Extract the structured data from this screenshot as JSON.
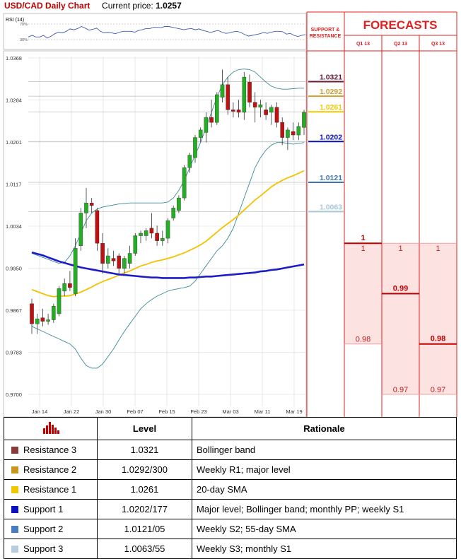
{
  "header": {
    "pair_label": "USD/CAD Daily Chart",
    "price_label": "Current price:",
    "price_value": "1.0257"
  },
  "rsi": {
    "label": "RSI (14)",
    "upper_tick": "70%",
    "lower_tick": "30%",
    "values": [
      46,
      50,
      46,
      46,
      50,
      43,
      48,
      54,
      58,
      56,
      60,
      66,
      64,
      67,
      72,
      68,
      63,
      65,
      68,
      60,
      56,
      57,
      56,
      54,
      58,
      60,
      60,
      60,
      58,
      62,
      64,
      67,
      67,
      70,
      70,
      69,
      72,
      72,
      70,
      68,
      66,
      64,
      66,
      67,
      64,
      66,
      62,
      60,
      57,
      60,
      62,
      58,
      55,
      56,
      59,
      60,
      57,
      52,
      48,
      50,
      52,
      54,
      57,
      55,
      58,
      60,
      60,
      59,
      53,
      55,
      50,
      47,
      50,
      52
    ]
  },
  "chart_data": {
    "type": "candlestick",
    "ylim": [
      0.97,
      1.0368
    ],
    "y_ticks": [
      "1.0368",
      "1.0284",
      "1.0201",
      "1.0117",
      "1.0034",
      "0.9950",
      "0.9867",
      "0.9783",
      "0.9700"
    ],
    "x_ticks": [
      "Jan 14",
      "Jan 22",
      "Jan 30",
      "Feb 07",
      "Feb 15",
      "Feb 23",
      "Mar 03",
      "Mar 11",
      "Mar 19"
    ],
    "candles": [
      {
        "o": 0.988,
        "h": 0.989,
        "l": 0.982,
        "c": 0.984
      },
      {
        "o": 0.984,
        "h": 0.986,
        "l": 0.982,
        "c": 0.985
      },
      {
        "o": 0.9852,
        "h": 0.987,
        "l": 0.9835,
        "c": 0.9845
      },
      {
        "o": 0.9845,
        "h": 0.986,
        "l": 0.9838,
        "c": 0.9848
      },
      {
        "o": 0.9848,
        "h": 0.988,
        "l": 0.9842,
        "c": 0.9875
      },
      {
        "o": 0.986,
        "h": 0.9915,
        "l": 0.9855,
        "c": 0.991
      },
      {
        "o": 0.9905,
        "h": 0.993,
        "l": 0.9895,
        "c": 0.992
      },
      {
        "o": 0.992,
        "h": 0.9945,
        "l": 0.9905,
        "c": 0.9912
      },
      {
        "o": 0.99,
        "h": 1.001,
        "l": 0.9895,
        "c": 0.999
      },
      {
        "o": 0.9995,
        "h": 1.007,
        "l": 0.9985,
        "c": 1.006
      },
      {
        "o": 1.006,
        "h": 1.011,
        "l": 1.003,
        "c": 1.008
      },
      {
        "o": 1.008,
        "h": 1.009,
        "l": 1.006,
        "c": 1.0075
      },
      {
        "o": 1.0065,
        "h": 1.007,
        "l": 0.9985,
        "c": 1.0
      },
      {
        "o": 1.0,
        "h": 1.002,
        "l": 0.994,
        "c": 0.996
      },
      {
        "o": 0.996,
        "h": 0.999,
        "l": 0.995,
        "c": 0.9975
      },
      {
        "o": 0.997,
        "h": 0.9985,
        "l": 0.9955,
        "c": 0.9965
      },
      {
        "o": 0.9975,
        "h": 0.998,
        "l": 0.994,
        "c": 0.995
      },
      {
        "o": 0.995,
        "h": 0.9975,
        "l": 0.994,
        "c": 0.997
      },
      {
        "o": 0.996,
        "h": 0.9995,
        "l": 0.995,
        "c": 0.998
      },
      {
        "o": 0.998,
        "h": 1.002,
        "l": 0.9975,
        "c": 1.0015
      },
      {
        "o": 1.0015,
        "h": 1.0025,
        "l": 1.0,
        "c": 1.002
      },
      {
        "o": 1.0015,
        "h": 1.003,
        "l": 1.0005,
        "c": 1.0025
      },
      {
        "o": 1.003,
        "h": 1.006,
        "l": 1.001,
        "c": 1.002
      },
      {
        "o": 1.002,
        "h": 1.0035,
        "l": 0.9995,
        "c": 1.0005
      },
      {
        "o": 1.0005,
        "h": 1.0025,
        "l": 0.9995,
        "c": 1.001
      },
      {
        "o": 1.001,
        "h": 1.005,
        "l": 1.0,
        "c": 1.0045
      },
      {
        "o": 1.005,
        "h": 1.0075,
        "l": 1.0045,
        "c": 1.007
      },
      {
        "o": 1.0065,
        "h": 1.0095,
        "l": 1.006,
        "c": 1.009
      },
      {
        "o": 1.009,
        "h": 1.0155,
        "l": 1.0085,
        "c": 1.015
      },
      {
        "o": 1.015,
        "h": 1.018,
        "l": 1.014,
        "c": 1.0175
      },
      {
        "o": 1.017,
        "h": 1.0215,
        "l": 1.016,
        "c": 1.021
      },
      {
        "o": 1.021,
        "h": 1.023,
        "l": 1.02,
        "c": 1.0225
      },
      {
        "o": 1.022,
        "h": 1.026,
        "l": 1.02,
        "c": 1.025
      },
      {
        "o": 1.025,
        "h": 1.0285,
        "l": 1.023,
        "c": 1.024
      },
      {
        "o": 1.024,
        "h": 1.03,
        "l": 1.0235,
        "c": 1.0295
      },
      {
        "o": 1.029,
        "h": 1.0345,
        "l": 1.028,
        "c": 1.0315
      },
      {
        "o": 1.0315,
        "h": 1.033,
        "l": 1.0255,
        "c": 1.0265
      },
      {
        "o": 1.0265,
        "h": 1.028,
        "l": 1.025,
        "c": 1.0262
      },
      {
        "o": 1.0265,
        "h": 1.0285,
        "l": 1.025,
        "c": 1.026
      },
      {
        "o": 1.026,
        "h": 1.034,
        "l": 1.0245,
        "c": 1.033
      },
      {
        "o": 1.032,
        "h": 1.0335,
        "l": 1.027,
        "c": 1.028
      },
      {
        "o": 1.028,
        "h": 1.03,
        "l": 1.024,
        "c": 1.027
      },
      {
        "o": 1.027,
        "h": 1.0285,
        "l": 1.025,
        "c": 1.0275
      },
      {
        "o": 1.0265,
        "h": 1.028,
        "l": 1.0245,
        "c": 1.0255
      },
      {
        "o": 1.026,
        "h": 1.0275,
        "l": 1.0235,
        "c": 1.027
      },
      {
        "o": 1.027,
        "h": 1.028,
        "l": 1.023,
        "c": 1.024
      },
      {
        "o": 1.024,
        "h": 1.025,
        "l": 1.0195,
        "c": 1.021
      },
      {
        "o": 1.021,
        "h": 1.023,
        "l": 1.0185,
        "c": 1.0225
      },
      {
        "o": 1.0222,
        "h": 1.024,
        "l": 1.0205,
        "c": 1.0215
      },
      {
        "o": 1.0215,
        "h": 1.024,
        "l": 1.0205,
        "c": 1.0232
      },
      {
        "o": 1.023,
        "h": 1.0265,
        "l": 1.0215,
        "c": 1.026
      }
    ],
    "indicators": {
      "sma20": [
        0.9908,
        0.9904,
        0.99,
        0.9896,
        0.9894,
        0.9895,
        0.9895,
        0.9896,
        0.9899,
        0.9903,
        0.9908,
        0.9913,
        0.9919,
        0.9924,
        0.9928,
        0.9932,
        0.9937,
        0.9941,
        0.9945,
        0.995,
        0.9955,
        0.9958,
        0.9962,
        0.9965,
        0.9967,
        0.997,
        0.9973,
        0.9977,
        0.9981,
        0.9986,
        0.9991,
        0.9997,
        1.0004,
        1.0013,
        1.0022,
        1.0031,
        1.0039,
        1.0047,
        1.0056,
        1.0066,
        1.0076,
        1.0086,
        1.0094,
        1.0103,
        1.0112,
        1.0119,
        1.0125,
        1.013,
        1.0134,
        1.0139,
        1.0144
      ],
      "sma55": [
        0.9982,
        0.9979,
        0.9976,
        0.9972,
        0.9968,
        0.9964,
        0.9961,
        0.9958,
        0.9955,
        0.9952,
        0.995,
        0.9948,
        0.9946,
        0.9944,
        0.9942,
        0.994,
        0.9938,
        0.9937,
        0.9936,
        0.9935,
        0.9934,
        0.9933,
        0.9932,
        0.9932,
        0.9931,
        0.9931,
        0.9931,
        0.9931,
        0.9931,
        0.9932,
        0.9932,
        0.9933,
        0.9934,
        0.9934,
        0.9935,
        0.9936,
        0.9937,
        0.9938,
        0.9939,
        0.994,
        0.9941,
        0.9942,
        0.9944,
        0.9945,
        0.9947,
        0.9948,
        0.995,
        0.9952,
        0.9954,
        0.9956,
        0.9958
      ],
      "bb_upper": [
        0.998,
        0.9976,
        0.9972,
        0.9968,
        0.9964,
        0.996,
        0.9962,
        0.9975,
        0.9995,
        1.002,
        1.0045,
        1.006,
        1.0068,
        1.0072,
        1.0074,
        1.0076,
        1.0078,
        1.0079,
        1.008,
        1.008,
        1.008,
        1.008,
        1.008,
        1.008,
        1.008,
        1.0082,
        1.009,
        1.0105,
        1.0125,
        1.015,
        1.0175,
        1.02,
        1.023,
        1.026,
        1.029,
        1.0315,
        1.033,
        1.034,
        1.0345,
        1.0346,
        1.0345,
        1.034,
        1.033,
        1.032,
        1.0312,
        1.0308,
        1.0306,
        1.0306,
        1.0307,
        1.0308,
        1.0308
      ],
      "bb_lower": [
        0.9835,
        0.983,
        0.9825,
        0.982,
        0.9815,
        0.981,
        0.9805,
        0.98,
        0.979,
        0.9772,
        0.9757,
        0.9752,
        0.9752,
        0.976,
        0.9775,
        0.979,
        0.9808,
        0.9825,
        0.984,
        0.9855,
        0.987,
        0.988,
        0.9888,
        0.9895,
        0.99,
        0.9905,
        0.9908,
        0.991,
        0.9912,
        0.9915,
        0.9925,
        0.994,
        0.9955,
        0.997,
        0.9985,
        0.9995,
        1.001,
        1.003,
        1.006,
        1.009,
        1.012,
        1.015,
        1.017,
        1.0185,
        1.0195,
        1.02,
        1.02,
        1.0198,
        1.0197,
        1.0198,
        1.02
      ]
    },
    "levels": [
      {
        "value": 1.0321,
        "label": "1.0321",
        "color": "#6a1a3a"
      },
      {
        "value": 1.0292,
        "label": "1.0292",
        "color": "#d0a030"
      },
      {
        "value": 1.0261,
        "label": "1.0261",
        "color": "#f0c800"
      },
      {
        "value": 1.0202,
        "label": "1.0202",
        "color": "#0a10c0"
      },
      {
        "value": 1.0121,
        "label": "1.0121",
        "color": "#3c74b8"
      },
      {
        "value": 1.0063,
        "label": "1.0063",
        "color": "#a8c8d8"
      }
    ]
  },
  "forecasts": {
    "sr_label_1": "SUPPORT &",
    "sr_label_2": "RESISTANCE",
    "title": "FORECASTS",
    "quarters": [
      {
        "label": "Q1 13",
        "upper": 1,
        "lower": 0.98,
        "upper_text": "1",
        "lower_text": "0.98",
        "marker": "upper",
        "marker_text": "1"
      },
      {
        "label": "Q2 13",
        "upper": 1,
        "lower": 0.97,
        "upper_text": "1",
        "lower_text": "0.97",
        "marker": "mid",
        "marker_value": 0.99,
        "marker_text": "0.99"
      },
      {
        "label": "Q3 13",
        "upper": 1,
        "lower": 0.97,
        "upper_text": "1",
        "lower_text": "0.97",
        "marker": "lower",
        "marker_value": 0.98,
        "marker_text": "0.98"
      }
    ]
  },
  "table": {
    "header_level": "Level",
    "header_rationale": "Rationale",
    "rows": [
      {
        "name": "Resistance 3",
        "level": "1.0321",
        "rationale": "Bollinger band",
        "color": "#8b3a3a"
      },
      {
        "name": "Resistance 2",
        "level": "1.0292/300",
        "rationale": "Weekly R1; major level",
        "color": "#c8961e"
      },
      {
        "name": "Resistance 1",
        "level": "1.0261",
        "rationale": "20-day SMA",
        "color": "#f0c800"
      },
      {
        "name": "Support 1",
        "level": "1.0202/177",
        "rationale": "Major level; Bollinger band; monthly PP; weekly S1",
        "color": "#0a10c0"
      },
      {
        "name": "Support 2",
        "level": "1.0121/05",
        "rationale": "Weekly S2; 55-day SMA",
        "color": "#4a7cc0"
      },
      {
        "name": "Support 3",
        "level": "1.0063/55",
        "rationale": "Weekly S3; monthly S1",
        "color": "#b8cce0"
      }
    ]
  }
}
